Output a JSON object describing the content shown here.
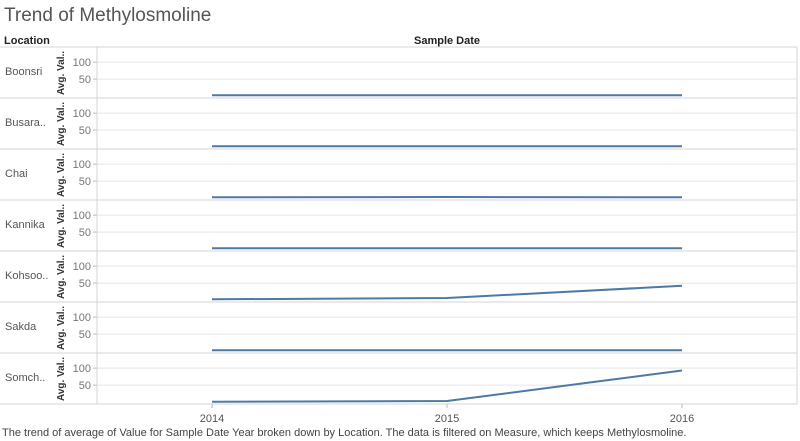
{
  "title": "Trend of Methylosmoline",
  "caption": "The trend of average of Value for Sample Date Year broken down by Location. The data is filtered on Measure, which keeps Methylosmoline.",
  "colors": {
    "line": "#4e79a7",
    "grid": "#e6e6e6",
    "border": "#d4d4d4"
  },
  "chart_data": {
    "type": "line",
    "row_header": "Location",
    "column_header": "Sample Date",
    "ylabel": "Avg. Val..",
    "yticks": [
      50,
      100
    ],
    "ylim": [
      0,
      130
    ],
    "x": [
      "2014",
      "2015",
      "2016"
    ],
    "series": [
      {
        "name": "Boonsri",
        "values": [
          2,
          2,
          2
        ]
      },
      {
        "name": "Busara..",
        "values": [
          2,
          2,
          2
        ]
      },
      {
        "name": "Chai",
        "values": [
          2,
          3,
          2
        ]
      },
      {
        "name": "Kannika",
        "values": [
          2,
          2,
          2
        ]
      },
      {
        "name": "Kohsoo..",
        "values": [
          2,
          6,
          42
        ]
      },
      {
        "name": "Sakda",
        "values": [
          2,
          2,
          2
        ]
      },
      {
        "name": "Somch..",
        "values": [
          1,
          3,
          93
        ]
      }
    ]
  }
}
